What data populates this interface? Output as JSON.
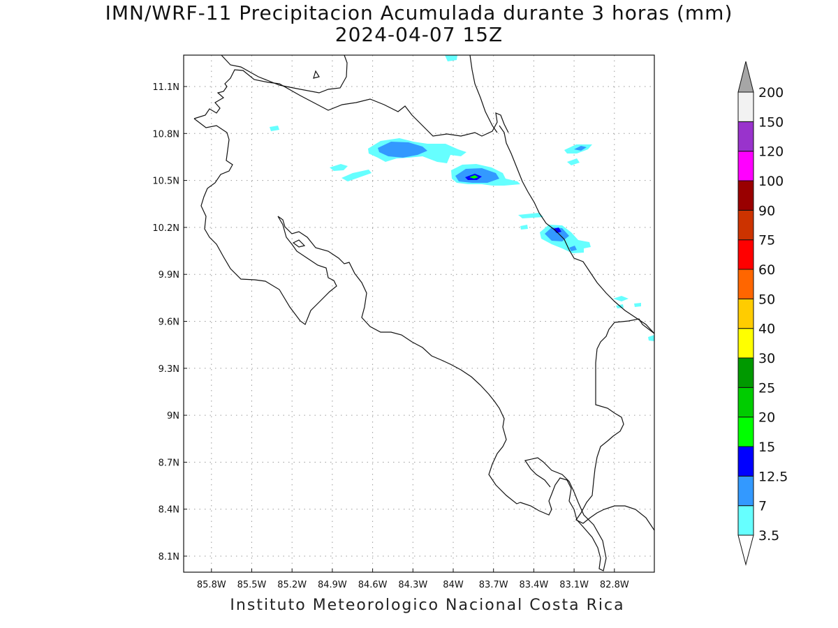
{
  "title": "IMN/WRF-11 Precipitacion Acumulada durante 3 horas (mm)",
  "subtitle": "2024-04-07 15Z",
  "footer": "Instituto Meteorologico Nacional Costa Rica",
  "map": {
    "lon_range": [
      -86.0,
      -82.3
    ],
    "lat_range": [
      8.0,
      11.3
    ],
    "lon_ticks": [
      {
        "value": -85.8,
        "label": "85.8W"
      },
      {
        "value": -85.5,
        "label": "85.5W"
      },
      {
        "value": -85.2,
        "label": "85.2W"
      },
      {
        "value": -84.9,
        "label": "84.9W"
      },
      {
        "value": -84.6,
        "label": "84.6W"
      },
      {
        "value": -84.3,
        "label": "84.3W"
      },
      {
        "value": -84.0,
        "label": "84W"
      },
      {
        "value": -83.7,
        "label": "83.7W"
      },
      {
        "value": -83.4,
        "label": "83.4W"
      },
      {
        "value": -83.1,
        "label": "83.1W"
      },
      {
        "value": -82.8,
        "label": "82.8W"
      }
    ],
    "lat_ticks": [
      {
        "value": 11.1,
        "label": "11.1N"
      },
      {
        "value": 10.8,
        "label": "10.8N"
      },
      {
        "value": 10.5,
        "label": "10.5N"
      },
      {
        "value": 10.2,
        "label": "10.2N"
      },
      {
        "value": 9.9,
        "label": "9.9N"
      },
      {
        "value": 9.6,
        "label": "9.6N"
      },
      {
        "value": 9.3,
        "label": "9.3N"
      },
      {
        "value": 9.0,
        "label": "9N"
      },
      {
        "value": 8.7,
        "label": "8.7N"
      },
      {
        "value": 8.4,
        "label": "8.4N"
      },
      {
        "value": 8.1,
        "label": "8.1N"
      }
    ],
    "grid": true
  },
  "colorbar": {
    "levels": [
      "3.5",
      "7",
      "12.5",
      "15",
      "20",
      "25",
      "30",
      "40",
      "50",
      "60",
      "75",
      "90",
      "100",
      "120",
      "150",
      "200"
    ],
    "colors": [
      "#66ffff",
      "#3399ff",
      "#0000ff",
      "#00ff00",
      "#00cc00",
      "#009900",
      "#ffff00",
      "#ffcc00",
      "#ff6600",
      "#ff0000",
      "#cc3300",
      "#990000",
      "#ff00ff",
      "#9933cc",
      "#f2f2f2"
    ],
    "top_arrow_color": "#a6a6a6",
    "bottom_arrow_color": "#ffffff"
  }
}
